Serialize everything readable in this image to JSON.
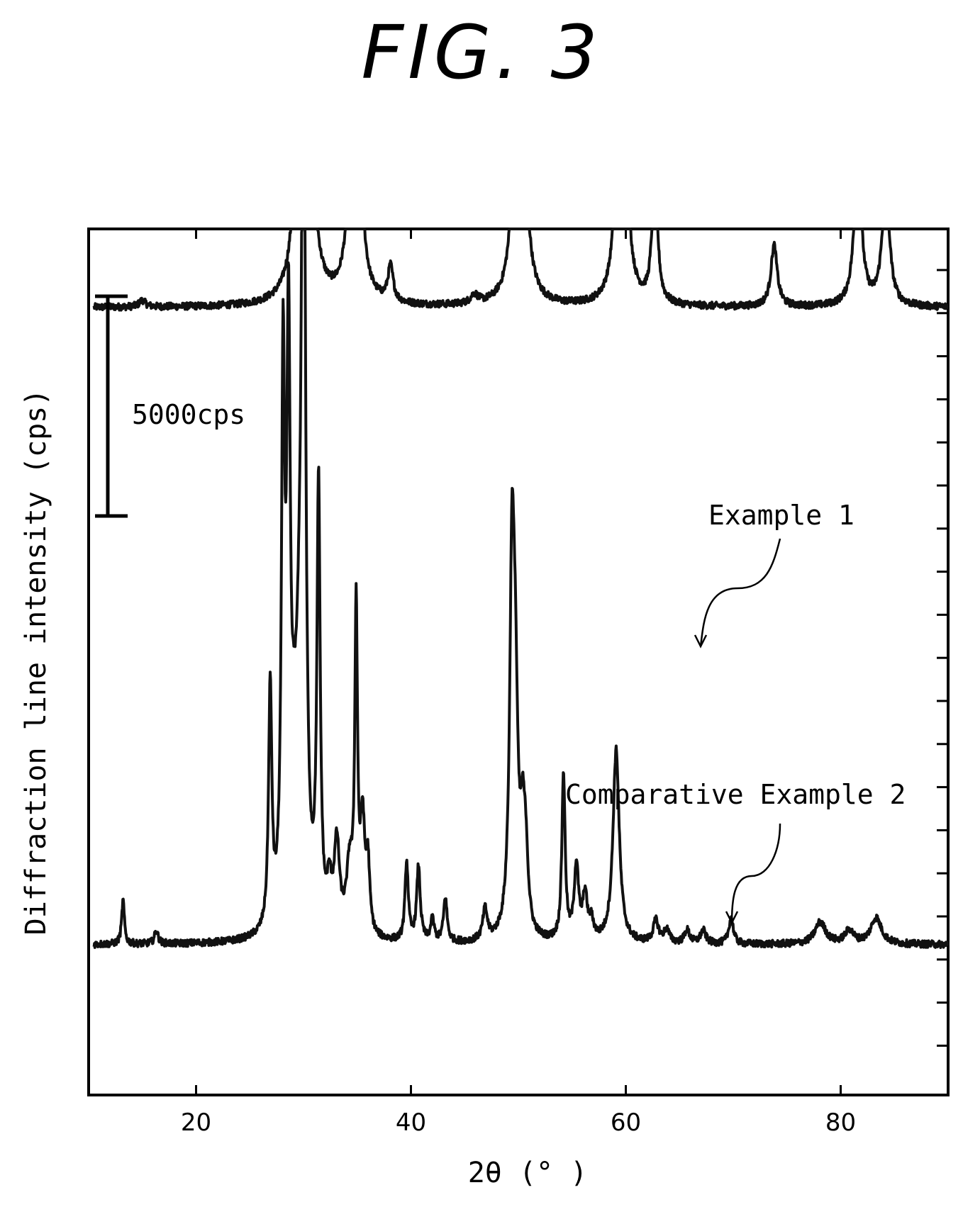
{
  "figure_title": "FIG. 3",
  "chart_data": {
    "type": "line",
    "title": "FIG. 3",
    "xlabel": "2θ (° )",
    "ylabel": "Diffraction line intensity (cps)",
    "xlim": [
      10,
      90
    ],
    "x_ticks": [
      20,
      40,
      60,
      80
    ],
    "y_ticks_shown": false,
    "scale_bar": {
      "label": "5000cps",
      "value": 5000
    },
    "grid": false,
    "series": [
      {
        "name": "Example 1",
        "offset_cps": 14500,
        "baseline_cps": 0,
        "peaks": [
          [
            15.0,
            150,
            0.35
          ],
          [
            29.5,
            1000,
            0.4
          ],
          [
            30.0,
            17800,
            0.35
          ],
          [
            30.6,
            1800,
            0.45
          ],
          [
            34.8,
            12500,
            0.35
          ],
          [
            38.1,
            800,
            0.3
          ],
          [
            45.9,
            200,
            0.4
          ],
          [
            50.1,
            14600,
            0.35
          ],
          [
            59.6,
            11600,
            0.35
          ],
          [
            62.7,
            3000,
            0.3
          ],
          [
            73.8,
            1400,
            0.35
          ],
          [
            81.6,
            3400,
            0.4
          ],
          [
            84.2,
            2800,
            0.4
          ]
        ]
      },
      {
        "name": "Comparative Example 2",
        "offset_cps": 0,
        "baseline_cps": 0,
        "peaks": [
          [
            13.2,
            1000,
            0.15
          ],
          [
            16.3,
            300,
            0.2
          ],
          [
            26.9,
            5500,
            0.18
          ],
          [
            28.1,
            12000,
            0.18
          ],
          [
            28.6,
            12400,
            0.2
          ],
          [
            29.1,
            2000,
            0.35
          ],
          [
            29.6,
            4000,
            0.4
          ],
          [
            30.0,
            22000,
            0.2
          ],
          [
            31.4,
            10000,
            0.18
          ],
          [
            32.4,
            900,
            0.25
          ],
          [
            33.1,
            2000,
            0.3
          ],
          [
            34.3,
            1500,
            0.35
          ],
          [
            34.9,
            7200,
            0.15
          ],
          [
            35.5,
            2500,
            0.25
          ],
          [
            36.0,
            1500,
            0.2
          ],
          [
            39.6,
            1800,
            0.18
          ],
          [
            40.7,
            1700,
            0.2
          ],
          [
            42.0,
            500,
            0.2
          ],
          [
            43.2,
            1000,
            0.2
          ],
          [
            46.9,
            700,
            0.25
          ],
          [
            49.4,
            7500,
            0.25
          ],
          [
            49.7,
            5000,
            0.3
          ],
          [
            50.4,
            2000,
            0.25
          ],
          [
            50.7,
            1500,
            0.25
          ],
          [
            54.2,
            3800,
            0.18
          ],
          [
            55.4,
            1700,
            0.25
          ],
          [
            56.2,
            1000,
            0.25
          ],
          [
            56.8,
            400,
            0.25
          ],
          [
            59.1,
            4400,
            0.35
          ],
          [
            62.8,
            500,
            0.3
          ],
          [
            63.8,
            300,
            0.3
          ],
          [
            65.7,
            300,
            0.3
          ],
          [
            67.2,
            300,
            0.3
          ],
          [
            69.8,
            600,
            0.25
          ],
          [
            78.1,
            500,
            0.6
          ],
          [
            80.8,
            300,
            0.5
          ],
          [
            83.3,
            600,
            0.6
          ]
        ]
      }
    ],
    "annotations": [
      {
        "text": "Example 1",
        "series": "Example 1",
        "points_to_x": 67.2
      },
      {
        "text": "Comparative Example 2",
        "series": "Comparative Example 2",
        "points_to_x": 69.6
      }
    ]
  }
}
